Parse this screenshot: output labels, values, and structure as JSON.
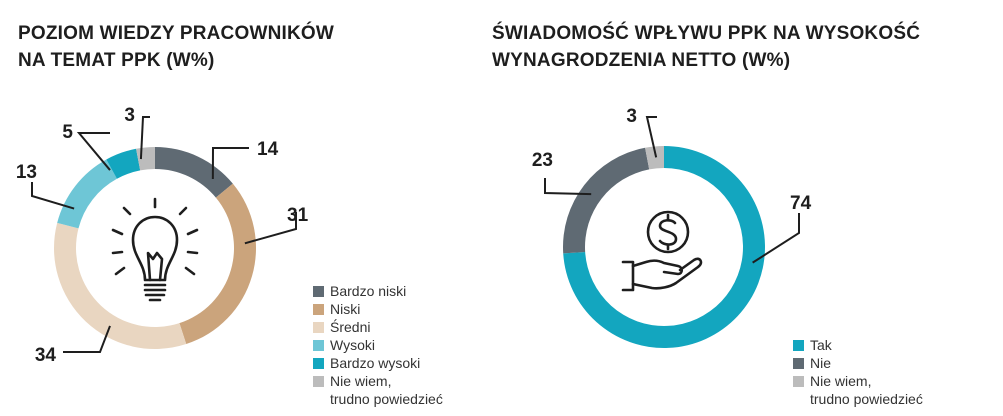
{
  "colors": {
    "dark_gray": "#5f6a73",
    "tan": "#cba47c",
    "beige": "#e9d6c1",
    "light_teal": "#6ec6d6",
    "teal": "#13a6bf",
    "light_gray": "#bcbcbc",
    "text": "#1e1e1e"
  },
  "chart_data": [
    {
      "type": "pie",
      "title_lines": [
        "POZIOM WIEDZY PRACOWNIKÓW",
        "NA TEMAT PPK (W%)"
      ],
      "center_icon": "lightbulb-icon",
      "categories": [
        "Bardzo niski",
        "Niski",
        "Średni",
        "Wysoki",
        "Bardzo wysoki",
        "Nie wiem, trudno powiedzieć"
      ],
      "values": [
        14,
        31,
        34,
        13,
        5,
        3
      ],
      "legend": [
        {
          "line1": "Bardzo niski",
          "line2": "",
          "color": "#5f6a73"
        },
        {
          "line1": "Niski",
          "line2": "",
          "color": "#cba47c"
        },
        {
          "line1": "Średni",
          "line2": "",
          "color": "#e9d6c1"
        },
        {
          "line1": "Wysoki",
          "line2": "",
          "color": "#6ec6d6"
        },
        {
          "line1": "Bardzo wysoki",
          "line2": "",
          "color": "#13a6bf"
        },
        {
          "line1": "Nie wiem,",
          "line2": "trudno powiedzieć",
          "color": "#bcbcbc"
        }
      ],
      "legend_placement": "bottom-right"
    },
    {
      "type": "pie",
      "title_lines": [
        "ŚWIADOMOŚĆ WPŁYWU PPK NA WYSOKOŚĆ",
        "WYNAGRODZENIA NETTO (W%)"
      ],
      "center_icon": "dollar-hand-icon",
      "categories": [
        "Tak",
        "Nie",
        "Nie wiem, trudno powiedzieć"
      ],
      "values": [
        74,
        23,
        3
      ],
      "legend": [
        {
          "line1": "Tak",
          "line2": "",
          "color": "#13a6bf"
        },
        {
          "line1": "Nie",
          "line2": "",
          "color": "#5f6a73"
        },
        {
          "line1": "Nie wiem,",
          "line2": "trudno powiedzieć",
          "color": "#bcbcbc"
        }
      ],
      "legend_placement": "bottom-right"
    }
  ]
}
